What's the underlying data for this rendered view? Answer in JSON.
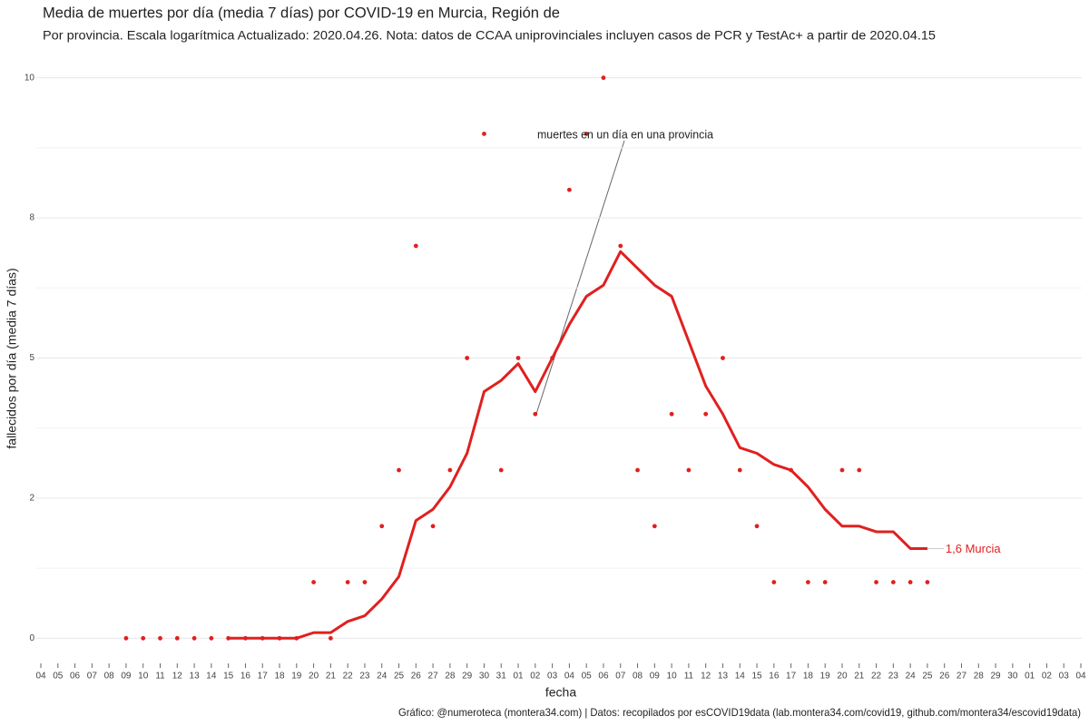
{
  "chart_data": {
    "type": "line",
    "title": "Media de muertes por día (media 7 días) por COVID-19 en Murcia, Región de",
    "subtitle": "Por provincia. Escala logarítmica  Actualizado: 2020.04.26. Nota: datos de CCAA uniprovinciales incluyen casos de PCR y TestAc+ a partir de 2020.04.15",
    "y_label": "fallecidos por día (media 7 días)",
    "x_label": "fecha",
    "caption": "Gráfico: @numeroteca (montera34.com) | Datos: recopilados por esCOVID19data (lab.montera34.com/covid19, github.com/montera34/escovid19data)",
    "annotation": "muertes en un día en una provincia",
    "categories": [
      "04",
      "05",
      "06",
      "07",
      "08",
      "09",
      "10",
      "11",
      "12",
      "13",
      "14",
      "15",
      "16",
      "17",
      "18",
      "19",
      "20",
      "21",
      "22",
      "23",
      "24",
      "25",
      "26",
      "27",
      "28",
      "29",
      "30",
      "31",
      "01",
      "02",
      "03",
      "04",
      "05",
      "06",
      "07",
      "08",
      "09",
      "10",
      "11",
      "12",
      "13",
      "14",
      "15",
      "16",
      "17",
      "18",
      "19",
      "20",
      "21",
      "22",
      "23",
      "24",
      "25",
      "26",
      "27",
      "28",
      "29",
      "30",
      "01",
      "02",
      "03",
      "04"
    ],
    "series": [
      {
        "style": "points",
        "color": "#e0201f",
        "values": [
          null,
          null,
          null,
          null,
          null,
          0,
          0,
          0,
          0,
          0,
          0,
          0,
          0,
          0,
          0,
          0,
          1,
          0,
          1,
          1,
          2,
          3,
          7,
          2,
          3,
          5,
          9,
          3,
          5,
          4,
          5,
          8,
          9,
          10,
          7,
          3,
          2,
          4,
          3,
          4,
          5,
          3,
          2,
          1,
          3,
          1,
          1,
          3,
          3,
          1,
          1,
          1,
          1,
          null,
          null,
          null,
          null,
          null,
          null,
          null,
          null,
          null
        ]
      },
      {
        "style": "line",
        "color": "#e0201f",
        "end_label": "1,6 Murcia",
        "values": [
          null,
          null,
          null,
          null,
          null,
          null,
          null,
          null,
          null,
          null,
          null,
          0,
          0,
          0,
          0,
          0,
          0.1,
          0.1,
          0.3,
          0.4,
          0.7,
          1.1,
          2.1,
          2.3,
          2.7,
          3.3,
          4.4,
          4.6,
          4.9,
          4.4,
          5,
          5.6,
          6.1,
          6.3,
          6.9,
          6.6,
          6.3,
          6.1,
          5.3,
          4.5,
          4,
          3.4,
          3.3,
          3.1,
          3,
          2.7,
          2.3,
          2,
          2,
          1.9,
          1.9,
          1.6,
          1.6,
          null,
          null,
          null,
          null,
          null,
          null,
          null,
          null,
          null
        ]
      }
    ],
    "ylim": [
      -0.4,
      10.4
    ],
    "yticks": [
      {
        "value": 0,
        "label": "0"
      },
      {
        "value": 2.5,
        "label": "2"
      },
      {
        "value": 5,
        "label": "5"
      },
      {
        "value": 7.5,
        "label": "8"
      },
      {
        "value": 10,
        "label": "10"
      }
    ],
    "minor_yticks": [
      1.25,
      3.75,
      6.25,
      8.75
    ],
    "grid": true
  }
}
